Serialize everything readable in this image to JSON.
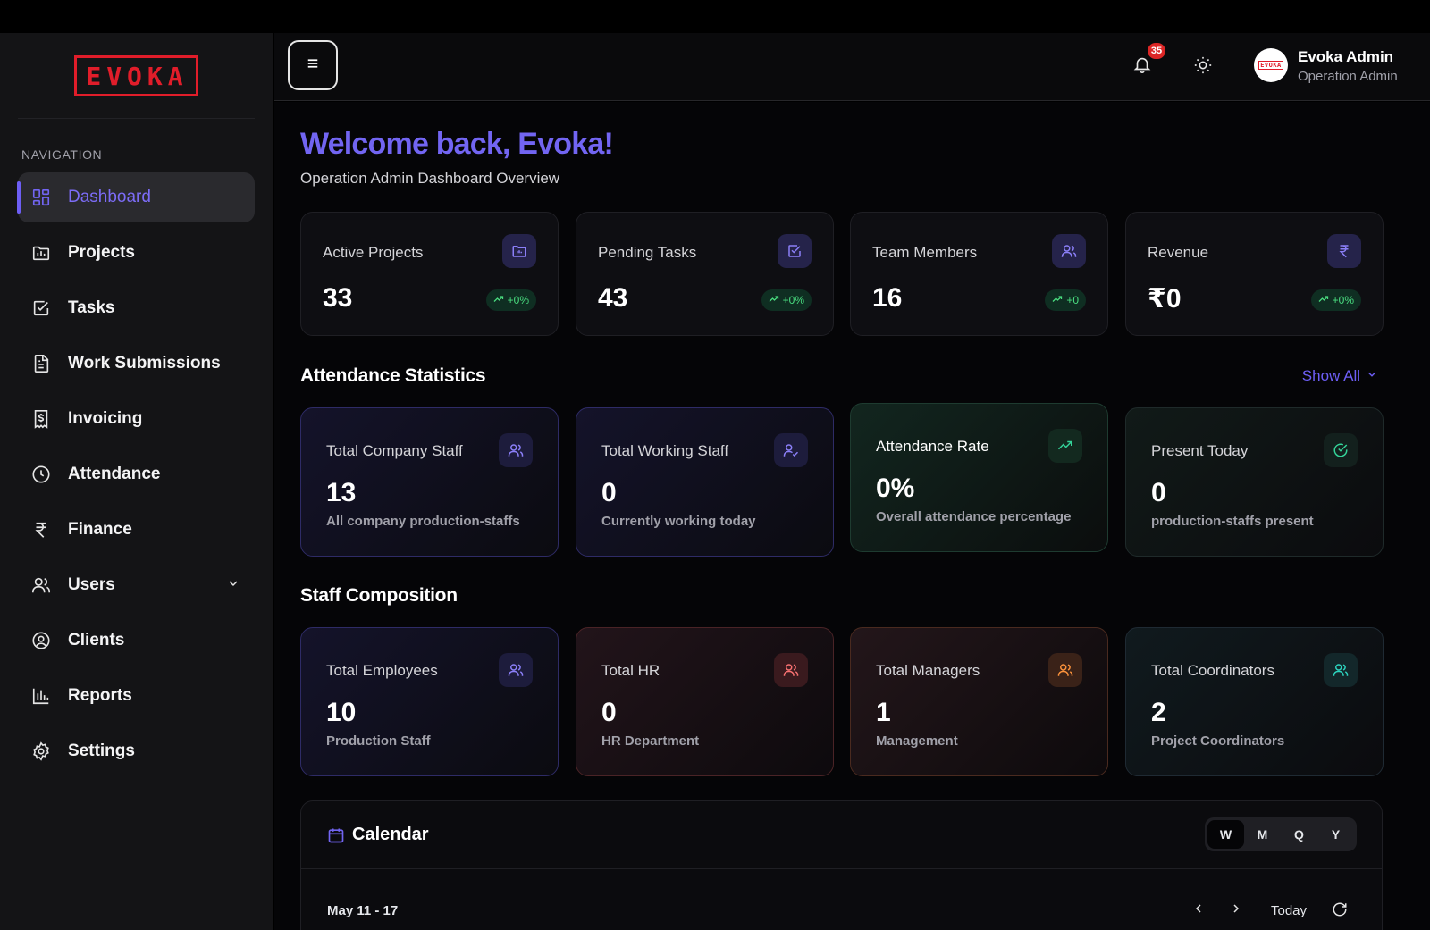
{
  "brand": {
    "logo_text": "EVOKA"
  },
  "sidebar": {
    "heading": "NAVIGATION",
    "items": [
      {
        "label": "Dashboard",
        "icon": "dashboard-icon",
        "active": true
      },
      {
        "label": "Projects",
        "icon": "folder-icon"
      },
      {
        "label": "Tasks",
        "icon": "check-square-icon"
      },
      {
        "label": "Work Submissions",
        "icon": "document-icon"
      },
      {
        "label": "Invoicing",
        "icon": "invoice-icon"
      },
      {
        "label": "Attendance",
        "icon": "clock-icon"
      },
      {
        "label": "Finance",
        "icon": "rupee-icon"
      },
      {
        "label": "Users",
        "icon": "users-icon",
        "expandable": true
      },
      {
        "label": "Clients",
        "icon": "user-circle-icon"
      },
      {
        "label": "Reports",
        "icon": "bar-chart-icon"
      },
      {
        "label": "Settings",
        "icon": "gear-icon"
      }
    ]
  },
  "header": {
    "notifications_count": "35",
    "user_name": "Evoka Admin",
    "user_role": "Operation Admin",
    "avatar_text": "EVOKA"
  },
  "main": {
    "welcome": "Welcome back, Evoka!",
    "subtitle": "Operation Admin Dashboard Overview",
    "kpis": [
      {
        "title": "Active Projects",
        "value": "33",
        "trend": "+0%",
        "icon": "folder-icon"
      },
      {
        "title": "Pending Tasks",
        "value": "43",
        "trend": "+0%",
        "icon": "check-square-icon"
      },
      {
        "title": "Team Members",
        "value": "16",
        "trend": "+0",
        "icon": "users-icon"
      },
      {
        "title": "Revenue",
        "value": "₹0",
        "trend": "+0%",
        "icon": "rupee-icon"
      }
    ],
    "attendance_title": "Attendance Statistics",
    "show_all": "Show All",
    "attendance": [
      {
        "title": "Total Company Staff",
        "value": "13",
        "sub": "All company production-staffs",
        "icon": "users-icon"
      },
      {
        "title": "Total Working Staff",
        "value": "0",
        "sub": "Currently working today",
        "icon": "user-check-icon"
      },
      {
        "title": "Attendance Rate",
        "value": "0%",
        "sub": "Overall attendance percentage",
        "icon": "trending-up-icon"
      },
      {
        "title": "Present Today",
        "value": "0",
        "sub": "production-staffs present",
        "icon": "check-circle-icon"
      }
    ],
    "composition_title": "Staff Composition",
    "composition": [
      {
        "title": "Total Employees",
        "value": "10",
        "sub": "Production Staff",
        "icon": "users-icon"
      },
      {
        "title": "Total HR",
        "value": "0",
        "sub": "HR Department",
        "icon": "users-icon"
      },
      {
        "title": "Total Managers",
        "value": "1",
        "sub": "Management",
        "icon": "users-icon"
      },
      {
        "title": "Total Coordinators",
        "value": "2",
        "sub": "Project Coordinators",
        "icon": "users-icon"
      }
    ],
    "calendar": {
      "title": "Calendar",
      "views": [
        "W",
        "M",
        "Q",
        "Y"
      ],
      "active_view": "W",
      "range": "May 11 - 17",
      "today_label": "Today"
    }
  },
  "colors": {
    "accent": "#7265f2",
    "brand_red": "#e11d2a",
    "trend_green": "#4ade80",
    "hr_red": "#f87171",
    "manager_orange": "#fb923c",
    "coordinator_teal": "#2dd4bf"
  }
}
